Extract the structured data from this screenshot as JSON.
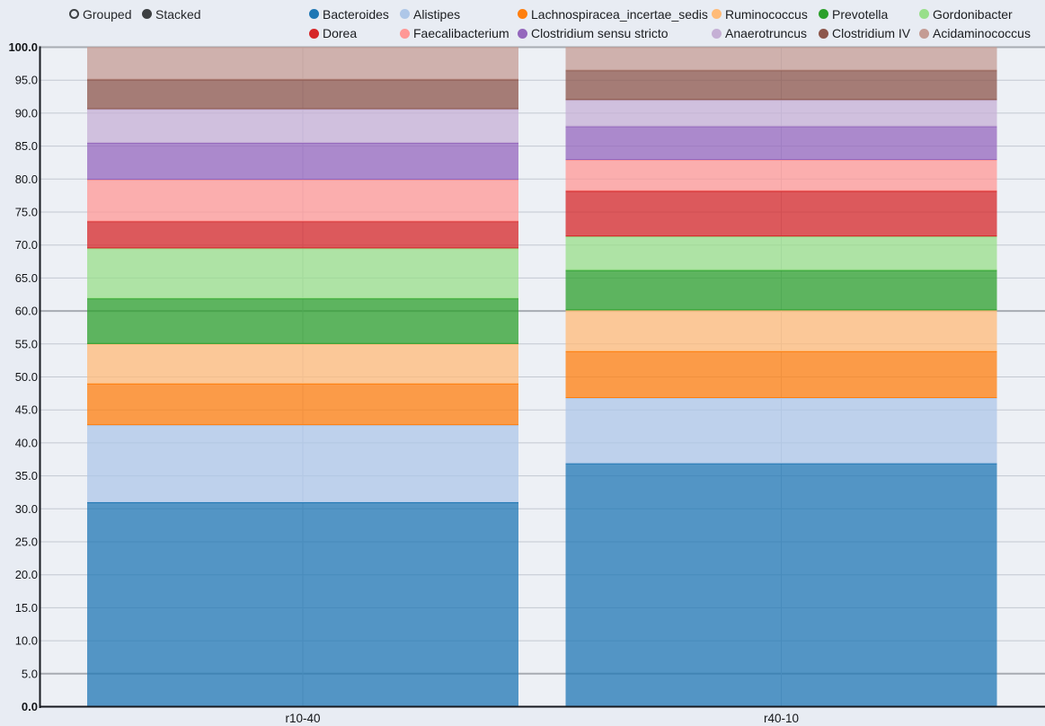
{
  "controls": {
    "options": [
      {
        "label": "Grouped",
        "selected": false
      },
      {
        "label": "Stacked",
        "selected": true
      }
    ]
  },
  "chart_data": {
    "type": "bar",
    "mode": "stacked",
    "categories": [
      "r10-40",
      "r40-10"
    ],
    "series": [
      {
        "name": "Bacteroides",
        "color": "#1f77b4",
        "values": [
          31.0,
          36.9
        ]
      },
      {
        "name": "Alistipes",
        "color": "#aec7e8",
        "values": [
          11.7,
          9.9
        ]
      },
      {
        "name": "Lachnospiracea_incertae_sedis",
        "color": "#ff7f0e",
        "values": [
          6.3,
          7.1
        ]
      },
      {
        "name": "Ruminococcus",
        "color": "#ffbb78",
        "values": [
          6.0,
          6.2
        ]
      },
      {
        "name": "Prevotella",
        "color": "#2ca02c",
        "values": [
          6.9,
          6.1
        ]
      },
      {
        "name": "Gordonibacter",
        "color": "#98df8a",
        "values": [
          7.6,
          5.1
        ]
      },
      {
        "name": "Dorea",
        "color": "#d62728",
        "values": [
          4.1,
          6.9
        ]
      },
      {
        "name": "Faecalibacterium",
        "color": "#ff9896",
        "values": [
          6.3,
          4.7
        ]
      },
      {
        "name": "Clostridium sensu stricto",
        "color": "#9467bd",
        "values": [
          5.6,
          5.1
        ]
      },
      {
        "name": "Anaerotruncus",
        "color": "#c5b0d5",
        "values": [
          5.1,
          4.0
        ]
      },
      {
        "name": "Clostridium IV",
        "color": "#8c564b",
        "values": [
          4.5,
          4.5
        ]
      },
      {
        "name": "Acidaminococcus",
        "color": "#c49c94",
        "values": [
          4.9,
          3.5
        ]
      }
    ],
    "ylim": [
      0,
      100
    ],
    "ytick_step": 5,
    "ytick_decimals": 1,
    "ytick_labels": [
      "0.0",
      "5.0",
      "10.0",
      "15.0",
      "20.0",
      "25.0",
      "30.0",
      "35.0",
      "40.0",
      "45.0",
      "50.0",
      "55.0",
      "60.0",
      "65.0",
      "70.0",
      "75.0",
      "80.0",
      "85.0",
      "90.0",
      "95.0",
      "100.0"
    ],
    "grid": true,
    "emphasized_gridlines": [
      100,
      60,
      5
    ],
    "legend_position": "top"
  },
  "theme": {
    "canvas_bg": "#e8ecf3",
    "plot_bg": "#edf0f5",
    "grid_color": "#c3c8d1",
    "grid_emphasis_color": "#a7abb2",
    "axis_color": "#16191f",
    "label_color": "#131518",
    "bar_fill_opacity": 0.75
  }
}
